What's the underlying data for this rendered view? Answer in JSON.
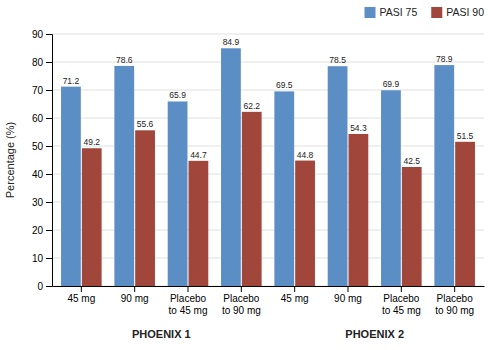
{
  "chart_data": {
    "type": "bar",
    "categories": [
      "45 mg",
      "90 mg",
      "Placebo\nto 45 mg",
      "Placebo\nto 90 mg",
      "45 mg",
      "90 mg",
      "Placebo\nto 45 mg",
      "Placebo\nto 90 mg"
    ],
    "series": [
      {
        "name": "PASI 75",
        "color": "#5B8EC4",
        "values": [
          71.2,
          78.6,
          65.9,
          84.9,
          69.5,
          78.5,
          69.9,
          78.9
        ]
      },
      {
        "name": "PASI 90",
        "color": "#A0463A",
        "values": [
          49.2,
          55.6,
          44.7,
          62.2,
          44.8,
          54.3,
          42.5,
          51.5
        ]
      }
    ],
    "category_groups": [
      {
        "label": "PHOENIX 1",
        "span": [
          0,
          3
        ]
      },
      {
        "label": "PHOENIX 2",
        "span": [
          4,
          7
        ]
      }
    ],
    "ylabel": "Percentage (%)",
    "ylim": [
      0,
      90
    ],
    "yticks": [
      0,
      10,
      20,
      30,
      40,
      50,
      60,
      70,
      80,
      90
    ],
    "grid": true,
    "legend": "upper right",
    "data_labels": true
  }
}
